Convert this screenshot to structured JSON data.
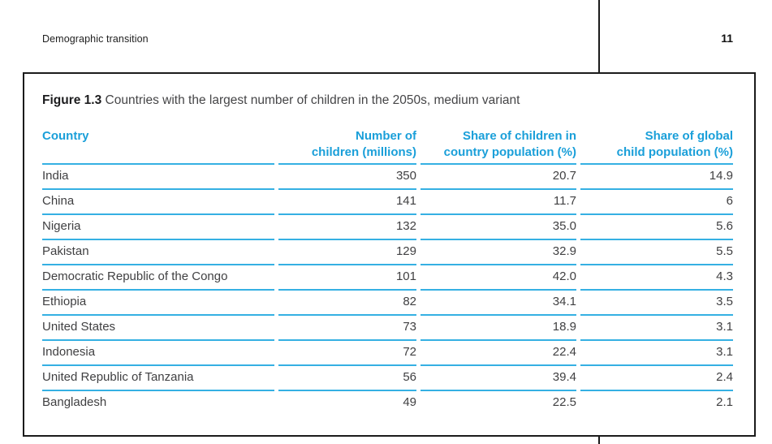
{
  "page": {
    "running_header": "Demographic transition",
    "page_number": "11"
  },
  "figure": {
    "label": "Figure 1.3",
    "caption": "Countries with the largest number of children in the 2050s, medium variant"
  },
  "table": {
    "columns": [
      {
        "line1": "Country",
        "line2": ""
      },
      {
        "line1": "Number of",
        "line2": "children (millions)"
      },
      {
        "line1": "Share of children in",
        "line2": "country population (%)"
      },
      {
        "line1": "Share of global",
        "line2": "child population (%)"
      }
    ],
    "rows": [
      {
        "country": "India",
        "children_millions": "350",
        "share_country": "20.7",
        "share_global": "14.9"
      },
      {
        "country": "China",
        "children_millions": "141",
        "share_country": "11.7",
        "share_global": "6"
      },
      {
        "country": "Nigeria",
        "children_millions": "132",
        "share_country": "35.0",
        "share_global": "5.6"
      },
      {
        "country": "Pakistan",
        "children_millions": "129",
        "share_country": "32.9",
        "share_global": "5.5"
      },
      {
        "country": "Democratic Republic of the Congo",
        "children_millions": "101",
        "share_country": "42.0",
        "share_global": "4.3"
      },
      {
        "country": "Ethiopia",
        "children_millions": "82",
        "share_country": "34.1",
        "share_global": "3.5"
      },
      {
        "country": "United States",
        "children_millions": "73",
        "share_country": "18.9",
        "share_global": "3.1"
      },
      {
        "country": "Indonesia",
        "children_millions": "72",
        "share_country": "22.4",
        "share_global": "3.1"
      },
      {
        "country": "United Republic of Tanzania",
        "children_millions": "56",
        "share_country": "39.4",
        "share_global": "2.4"
      },
      {
        "country": "Bangladesh",
        "children_millions": "49",
        "share_country": "22.5",
        "share_global": "2.1"
      }
    ]
  },
  "colors": {
    "accent": "#1a9fd9",
    "rule": "#35b0e3",
    "ink": "#404042",
    "black": "#1b1b1b"
  }
}
